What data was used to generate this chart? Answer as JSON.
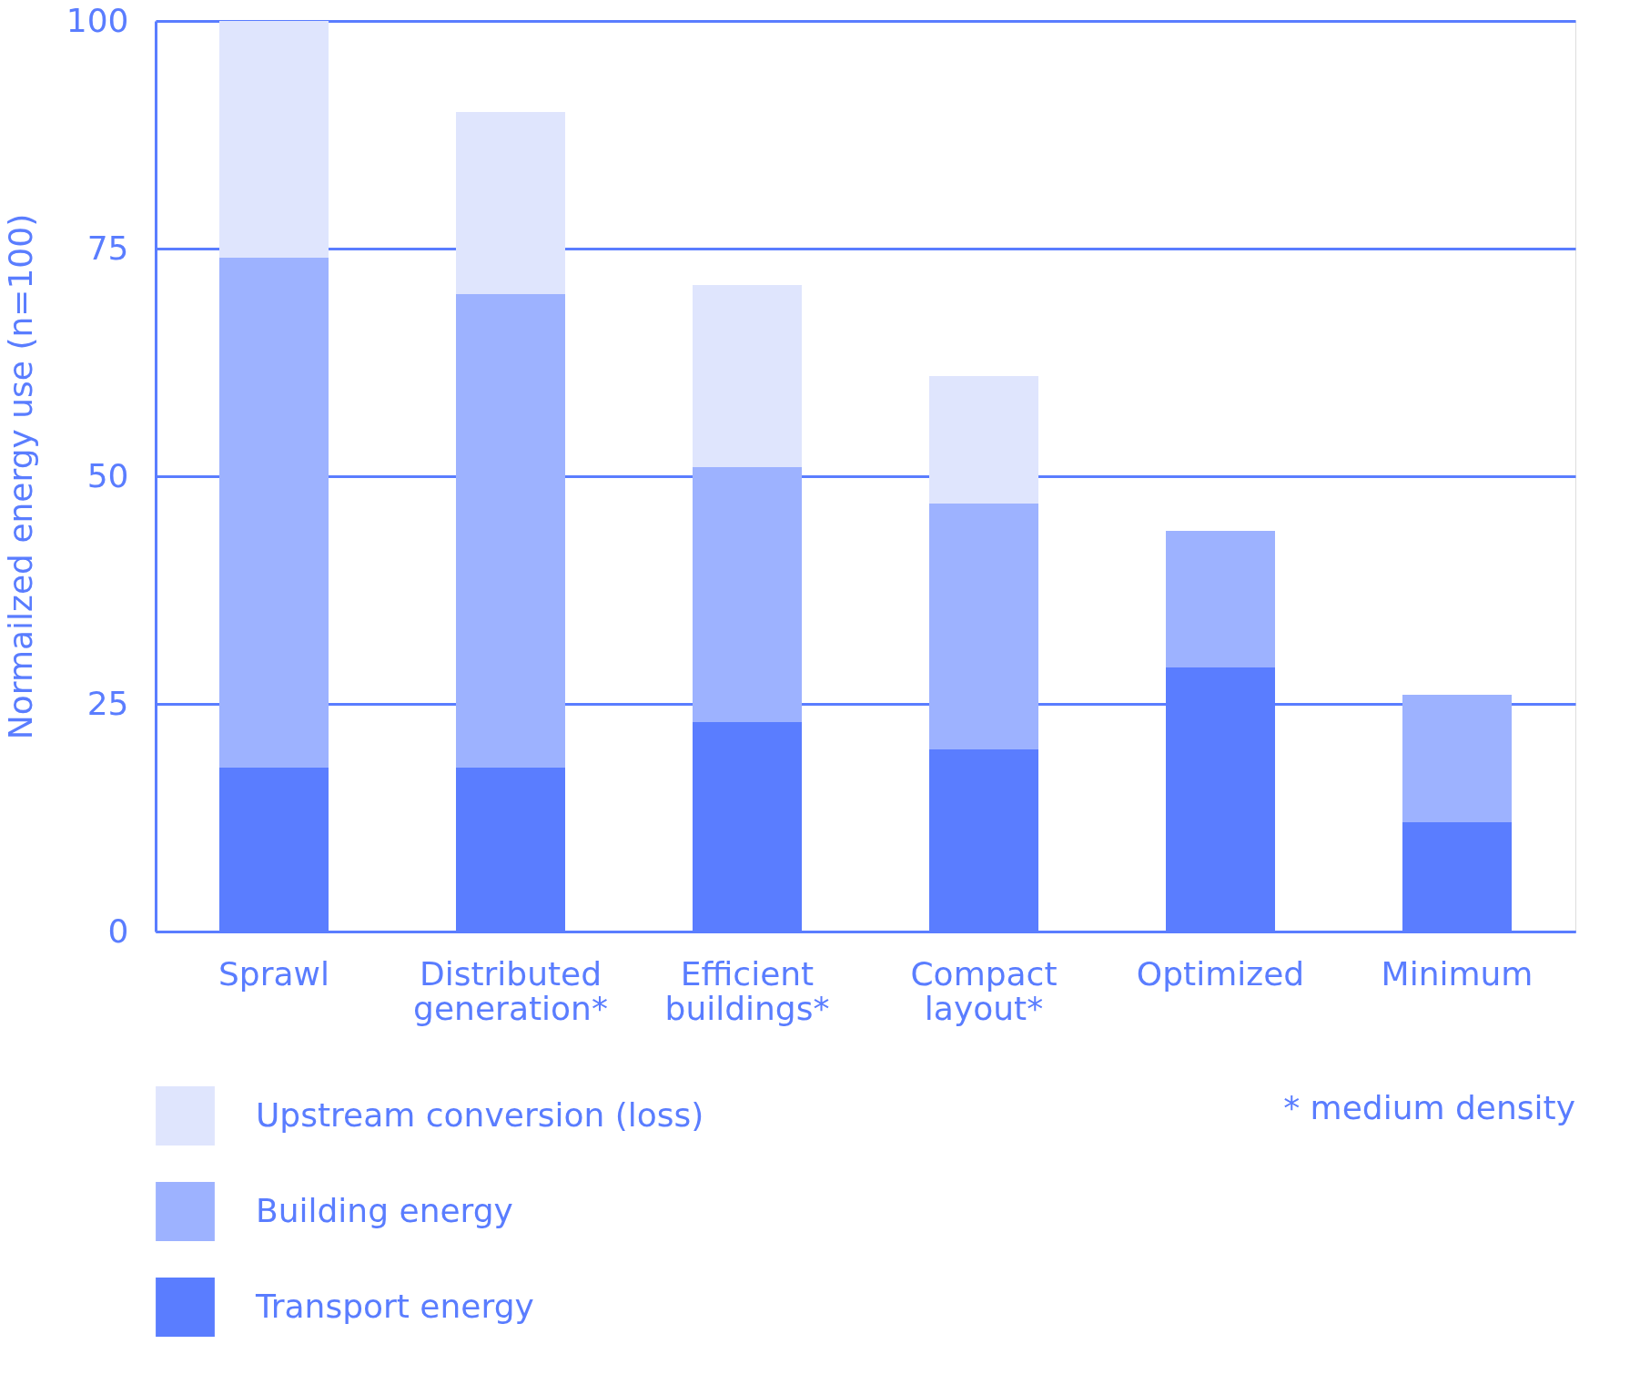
{
  "chart_data": {
    "type": "bar",
    "stacked": true,
    "ylabel": "Normailzed energy use (n=100)",
    "categories": [
      "Sprawl",
      "Distributed generation*",
      "Efficient buildings*",
      "Compact layout*",
      "Optimized",
      "Minimum"
    ],
    "series": [
      {
        "name": "Transport energy",
        "color": "#5a7dff",
        "values": [
          18,
          18,
          23,
          20,
          29,
          12
        ]
      },
      {
        "name": "Building energy",
        "color": "#9db2ff",
        "values": [
          56,
          52,
          28,
          27,
          15,
          14
        ]
      },
      {
        "name": "Upstream conversion (loss)",
        "color": "#dfe5fd",
        "values": [
          26,
          20,
          20,
          14,
          null,
          null
        ]
      }
    ],
    "ylim": [
      0,
      100
    ],
    "yticks": [
      0,
      25,
      50,
      75,
      100
    ],
    "grid": "y",
    "legend": "bottom left",
    "annotations": [
      "*     medium density"
    ]
  }
}
